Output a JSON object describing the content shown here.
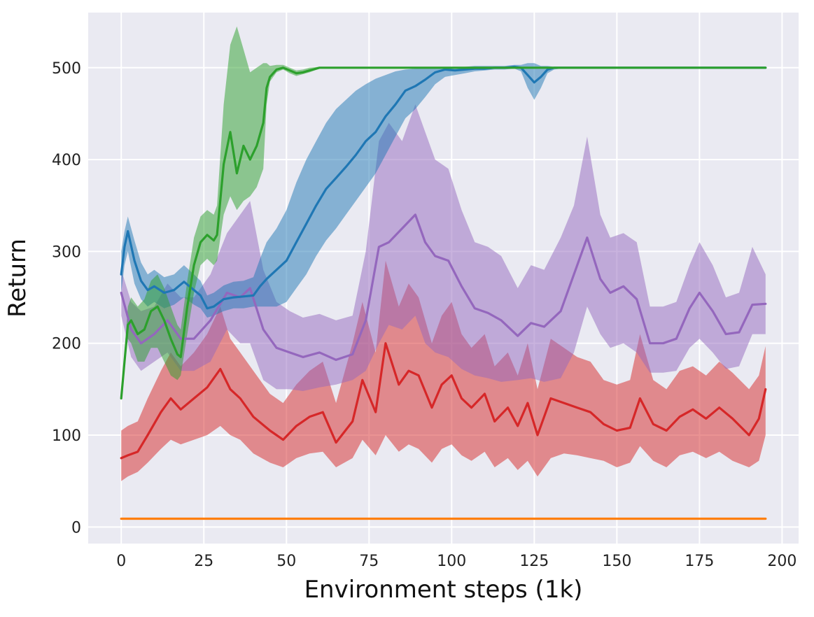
{
  "chart_data": {
    "type": "line",
    "title": "",
    "xlabel": "Environment steps (1k)",
    "ylabel": "Return",
    "xlim": [
      -10,
      205
    ],
    "ylim": [
      -18,
      560
    ],
    "x_ticks": [
      0,
      25,
      50,
      75,
      100,
      125,
      150,
      175,
      200
    ],
    "y_ticks": [
      0,
      100,
      200,
      300,
      400,
      500
    ],
    "grid": true,
    "legend": "none",
    "series": [
      {
        "name": "orange",
        "color": "#ff7f0e",
        "x": [
          0,
          50,
          100,
          150,
          195
        ],
        "y": [
          9,
          9,
          9,
          9,
          9
        ],
        "lower": [
          8,
          8,
          8,
          8,
          8
        ],
        "upper": [
          10,
          10,
          10,
          10,
          10
        ]
      },
      {
        "name": "red",
        "color": "#d62728",
        "x": [
          0,
          2,
          5,
          8,
          12,
          15,
          18,
          22,
          26,
          30,
          33,
          36,
          40,
          45,
          49,
          53,
          57,
          61,
          65,
          70,
          73,
          77,
          80,
          84,
          87,
          90,
          94,
          97,
          100,
          103,
          106,
          110,
          113,
          117,
          120,
          123,
          126,
          130,
          134,
          138,
          142,
          146,
          150,
          154,
          157,
          161,
          165,
          169,
          173,
          177,
          181,
          185,
          190,
          193,
          195
        ],
        "y": [
          75,
          78,
          82,
          100,
          125,
          140,
          128,
          140,
          152,
          172,
          150,
          140,
          120,
          105,
          95,
          110,
          120,
          125,
          92,
          115,
          160,
          125,
          200,
          155,
          170,
          165,
          130,
          155,
          165,
          140,
          130,
          145,
          115,
          130,
          110,
          135,
          100,
          140,
          135,
          130,
          125,
          112,
          105,
          108,
          140,
          112,
          105,
          120,
          128,
          118,
          130,
          118,
          100,
          118,
          150
        ],
        "lower": [
          50,
          55,
          60,
          70,
          85,
          95,
          90,
          95,
          100,
          110,
          100,
          95,
          80,
          70,
          65,
          75,
          80,
          82,
          65,
          75,
          95,
          78,
          100,
          82,
          90,
          85,
          70,
          85,
          90,
          78,
          72,
          82,
          65,
          75,
          62,
          72,
          55,
          75,
          80,
          78,
          75,
          72,
          65,
          70,
          88,
          72,
          65,
          78,
          82,
          75,
          82,
          72,
          65,
          72,
          100
        ],
        "upper": [
          105,
          110,
          115,
          140,
          170,
          190,
          175,
          190,
          210,
          240,
          205,
          190,
          170,
          145,
          135,
          155,
          170,
          180,
          135,
          200,
          245,
          190,
          290,
          240,
          265,
          250,
          200,
          230,
          245,
          210,
          195,
          210,
          175,
          190,
          165,
          200,
          150,
          205,
          195,
          185,
          180,
          160,
          155,
          160,
          210,
          160,
          150,
          170,
          175,
          165,
          180,
          168,
          150,
          165,
          197
        ]
      },
      {
        "name": "purple",
        "color": "#9467bd",
        "x": [
          0,
          3,
          6,
          10,
          14,
          18,
          22,
          27,
          32,
          36,
          39,
          43,
          47,
          51,
          55,
          60,
          65,
          70,
          74,
          78,
          81,
          85,
          89,
          92,
          95,
          99,
          103,
          107,
          111,
          115,
          120,
          124,
          128,
          133,
          137,
          141,
          145,
          148,
          152,
          156,
          160,
          164,
          168,
          172,
          175,
          179,
          183,
          187,
          191,
          195
        ],
        "y": [
          255,
          215,
          200,
          210,
          225,
          205,
          205,
          225,
          255,
          250,
          260,
          215,
          195,
          190,
          185,
          190,
          182,
          188,
          225,
          305,
          310,
          325,
          340,
          310,
          295,
          290,
          262,
          238,
          233,
          225,
          208,
          222,
          218,
          235,
          275,
          315,
          270,
          255,
          262,
          248,
          200,
          200,
          205,
          238,
          255,
          235,
          210,
          212,
          242,
          243
        ],
        "lower": [
          230,
          185,
          170,
          180,
          190,
          170,
          170,
          180,
          215,
          200,
          200,
          160,
          150,
          150,
          148,
          152,
          155,
          160,
          170,
          200,
          220,
          215,
          230,
          200,
          190,
          185,
          172,
          165,
          162,
          158,
          160,
          162,
          158,
          162,
          190,
          240,
          210,
          195,
          200,
          190,
          168,
          168,
          170,
          195,
          205,
          190,
          172,
          175,
          210,
          210
        ],
        "upper": [
          280,
          245,
          235,
          240,
          265,
          250,
          250,
          275,
          320,
          340,
          355,
          280,
          245,
          235,
          228,
          232,
          225,
          230,
          300,
          420,
          440,
          420,
          460,
          430,
          400,
          390,
          345,
          310,
          305,
          295,
          260,
          285,
          280,
          315,
          350,
          425,
          340,
          315,
          320,
          310,
          240,
          240,
          245,
          285,
          310,
          285,
          250,
          255,
          305,
          275
        ]
      },
      {
        "name": "blue",
        "color": "#1f77b4",
        "x": [
          0,
          1,
          2,
          4,
          6,
          8,
          10,
          13,
          16,
          19,
          22,
          24,
          26,
          28,
          31,
          34,
          37,
          40,
          42,
          44,
          47,
          50,
          53,
          56,
          59,
          62,
          65,
          68,
          71,
          74,
          77,
          80,
          83,
          86,
          89,
          92,
          95,
          98,
          101,
          104,
          107,
          110,
          113,
          116,
          119,
          121,
          123,
          125,
          127,
          129,
          131,
          133,
          135,
          140,
          150,
          160,
          170,
          180,
          190,
          195
        ],
        "y": [
          275,
          305,
          322,
          290,
          268,
          258,
          262,
          255,
          258,
          267,
          258,
          252,
          238,
          240,
          248,
          250,
          251,
          252,
          262,
          270,
          280,
          290,
          310,
          330,
          350,
          368,
          380,
          392,
          405,
          420,
          430,
          447,
          460,
          475,
          480,
          487,
          495,
          498,
          497,
          498,
          499,
          499,
          500,
          500,
          501,
          500,
          492,
          484,
          490,
          498,
          500,
          500,
          500,
          500,
          500,
          500,
          500,
          500,
          500,
          500
        ],
        "lower": [
          255,
          285,
          300,
          265,
          248,
          240,
          245,
          238,
          242,
          250,
          242,
          238,
          228,
          230,
          235,
          238,
          238,
          240,
          240,
          240,
          240,
          245,
          260,
          275,
          295,
          312,
          325,
          340,
          355,
          370,
          385,
          405,
          425,
          445,
          455,
          468,
          482,
          490,
          492,
          494,
          496,
          497,
          498,
          498,
          499,
          496,
          478,
          465,
          478,
          494,
          498,
          499,
          500,
          500,
          500,
          500,
          500,
          500,
          500,
          500
        ],
        "upper": [
          300,
          322,
          338,
          312,
          288,
          275,
          280,
          272,
          275,
          285,
          275,
          268,
          252,
          255,
          263,
          267,
          268,
          272,
          292,
          310,
          325,
          345,
          375,
          400,
          420,
          440,
          455,
          465,
          475,
          482,
          488,
          492,
          496,
          498,
          499,
          500,
          500,
          500,
          500,
          501,
          502,
          502,
          502,
          502,
          503,
          503,
          505,
          505,
          502,
          502,
          501,
          500,
          500,
          500,
          500,
          500,
          500,
          500,
          500,
          500
        ]
      },
      {
        "name": "green",
        "color": "#2ca02c",
        "x": [
          0,
          1,
          2,
          3,
          5,
          7,
          9,
          11,
          13,
          15,
          17,
          18,
          20,
          22,
          24,
          26,
          28,
          29,
          31,
          33,
          35,
          37,
          39,
          41,
          43,
          44,
          45,
          47,
          49,
          51,
          53,
          55,
          57,
          60,
          70,
          100,
          130,
          160,
          195
        ],
        "y": [
          140,
          180,
          220,
          225,
          210,
          215,
          235,
          240,
          225,
          205,
          188,
          185,
          240,
          285,
          310,
          318,
          312,
          318,
          395,
          430,
          385,
          415,
          400,
          415,
          440,
          478,
          490,
          498,
          500,
          497,
          494,
          495,
          497,
          500,
          500,
          500,
          500,
          500,
          500
        ],
        "lower": [
          140,
          175,
          205,
          200,
          180,
          180,
          195,
          195,
          180,
          165,
          160,
          165,
          210,
          255,
          285,
          292,
          285,
          290,
          340,
          360,
          345,
          355,
          360,
          370,
          390,
          460,
          485,
          495,
          498,
          494,
          491,
          493,
          495,
          499,
          500,
          500,
          500,
          500,
          500
        ],
        "upper": [
          140,
          190,
          240,
          250,
          240,
          248,
          268,
          275,
          260,
          240,
          220,
          215,
          268,
          315,
          338,
          345,
          340,
          350,
          460,
          525,
          545,
          520,
          495,
          500,
          505,
          505,
          502,
          503,
          503,
          500,
          497,
          498,
          500,
          501,
          500,
          500,
          500,
          500,
          500
        ]
      }
    ]
  }
}
